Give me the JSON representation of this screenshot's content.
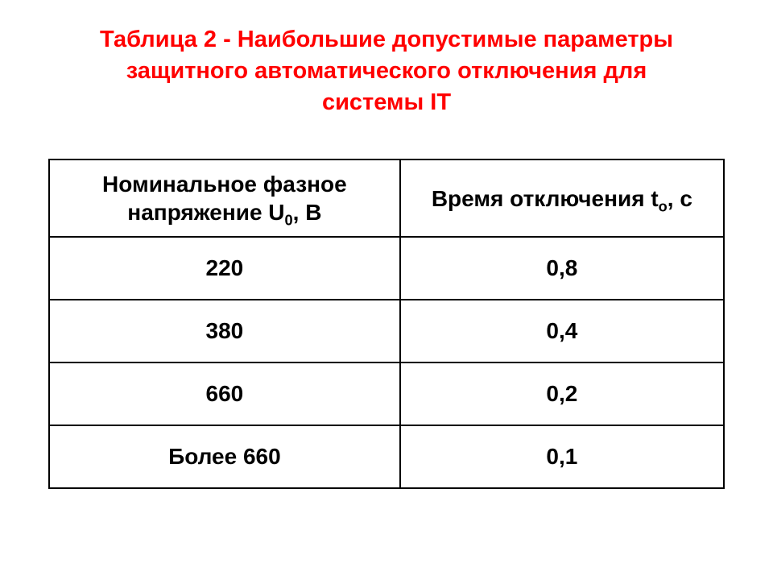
{
  "title": "Таблица 2 - Наибольшие допустимые параметры защитного автоматического отключения для системы IT",
  "table": {
    "type": "table",
    "background_color": "#ffffff",
    "border_color": "#000000",
    "title_color": "#ff0000",
    "text_color": "#000000",
    "title_fontsize": 29,
    "cell_fontsize": 28,
    "header_col1_prefix": "Номинальное фазное напряжение U",
    "header_col1_sub": "0",
    "header_col1_suffix": ", В",
    "header_col2_prefix": "Время отключения t",
    "header_col2_sub": "о",
    "header_col2_suffix": ", с",
    "columns": [
      "Номинальное фазное напряжение U0, В",
      "Время отключения tо, с"
    ],
    "rows": [
      [
        "220",
        "0,8"
      ],
      [
        "380",
        "0,4"
      ],
      [
        "660",
        "0,2"
      ],
      [
        "Более 660",
        "0,1"
      ]
    ]
  }
}
